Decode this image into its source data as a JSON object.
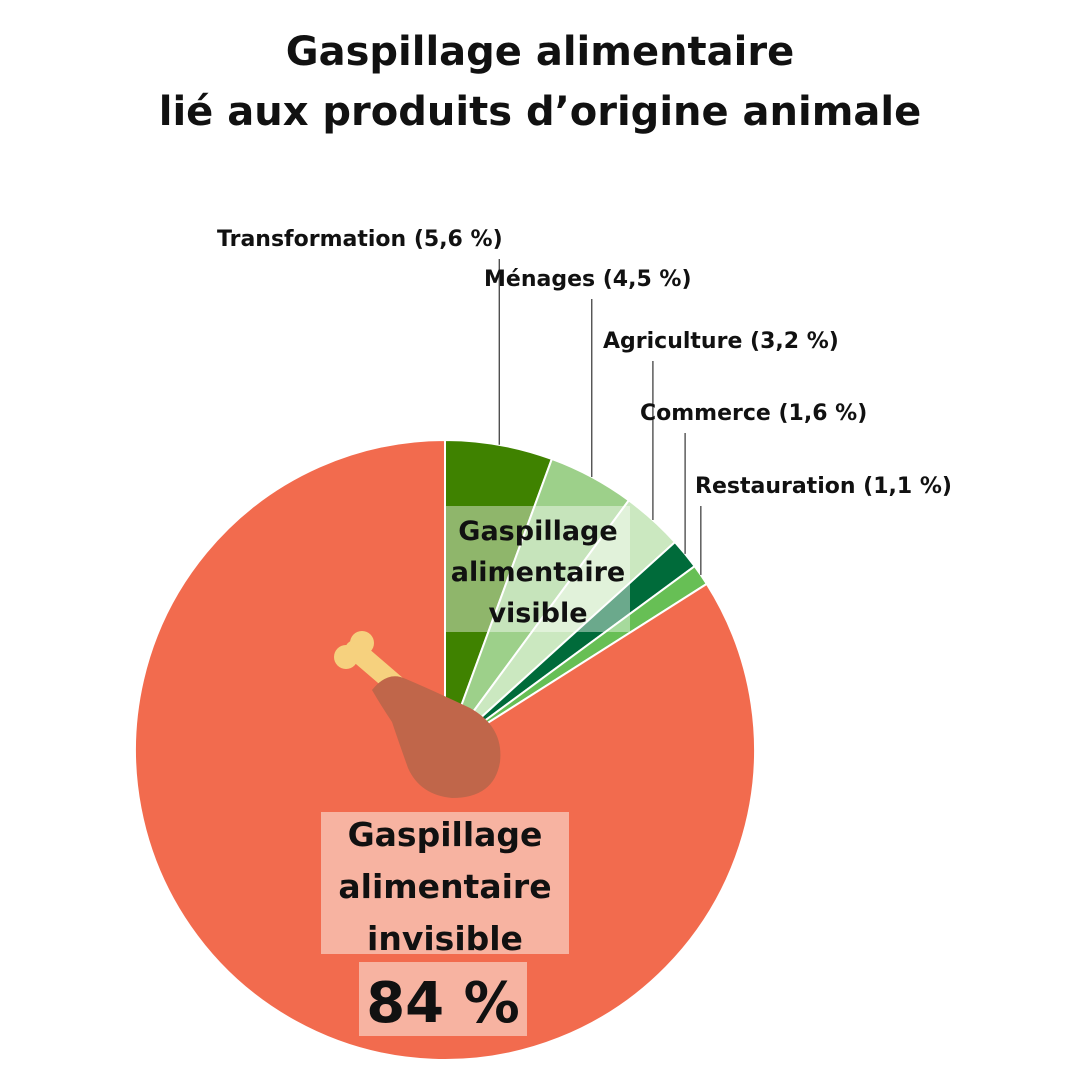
{
  "title_lines": [
    "Gaspillage alimentaire",
    "lié aux produits d’origine animale"
  ],
  "chart_data": {
    "type": "pie",
    "unit": "%",
    "slices": [
      {
        "label": "Transformation (5,6 %)",
        "value": 5.6,
        "color": "#3f8200"
      },
      {
        "label": "Ménages (4,5 %)",
        "value": 4.5,
        "color": "#9dd08a"
      },
      {
        "label": "Agriculture (3,2 %)",
        "value": 3.2,
        "color": "#cbe8c0"
      },
      {
        "label": "Commerce (1,6 %)",
        "value": 1.6,
        "color": "#006b3a"
      },
      {
        "label": "Restauration (1,1 %)",
        "value": 1.1,
        "color": "#67bf55"
      },
      {
        "label": "Gaspillage alimentaire invisible",
        "value": 84,
        "color": "#f26b4e"
      }
    ],
    "visible_box": {
      "lines": [
        "Gaspillage",
        "alimentaire",
        "visible"
      ]
    },
    "invisible_box": {
      "lines": [
        "Gaspillage",
        "alimentaire",
        "invisible"
      ],
      "value_label": "84 %"
    }
  },
  "icon": "chicken-drumstick-icon",
  "colors": {
    "bone": "#f6d17e",
    "meat": "#c0664a"
  }
}
